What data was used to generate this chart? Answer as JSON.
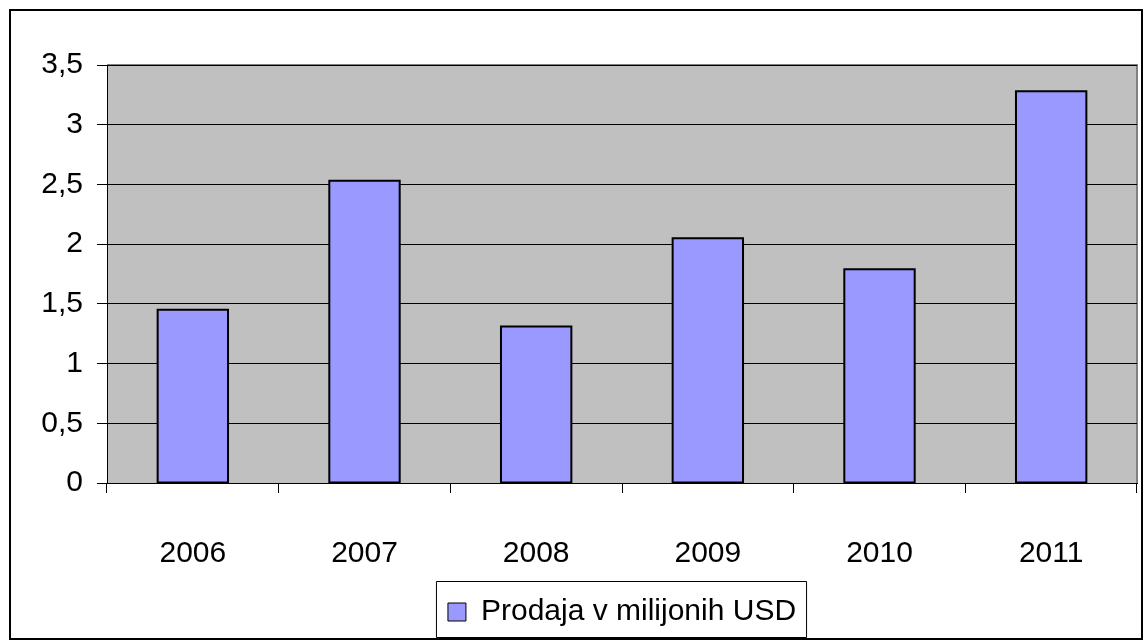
{
  "chart_data": {
    "type": "bar",
    "categories": [
      "2006",
      "2007",
      "2008",
      "2009",
      "2010",
      "2011"
    ],
    "series": [
      {
        "name": "Prodaja v milijonih USD",
        "color": "#9999ff",
        "values": [
          1.45,
          2.53,
          1.31,
          2.05,
          1.79,
          3.28
        ]
      }
    ],
    "ylim": [
      0,
      3.5
    ],
    "yticks": [
      0,
      {
        "value": 0.5,
        "label": "0,5"
      },
      1,
      {
        "value": 1.5,
        "label": "1,5"
      },
      2,
      {
        "value": 2.5,
        "label": "2,5"
      },
      3,
      {
        "value": 3.5,
        "label": "3,5"
      }
    ],
    "grid": "y",
    "legend": "bottom"
  }
}
